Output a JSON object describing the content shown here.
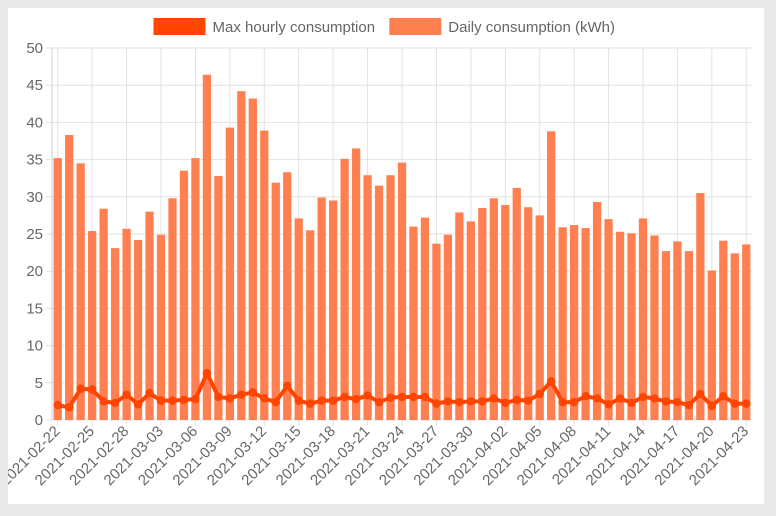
{
  "chart_data": {
    "type": "bar",
    "ylim": [
      0,
      50
    ],
    "yticks": [
      0,
      5,
      10,
      15,
      20,
      25,
      30,
      35,
      40,
      45,
      50
    ],
    "grid": true,
    "legend_position": "top-center",
    "x": [
      "2021-02-22",
      "2021-02-23",
      "2021-02-24",
      "2021-02-25",
      "2021-02-26",
      "2021-02-27",
      "2021-02-28",
      "2021-03-01",
      "2021-03-02",
      "2021-03-03",
      "2021-03-04",
      "2021-03-05",
      "2021-03-06",
      "2021-03-07",
      "2021-03-08",
      "2021-03-09",
      "2021-03-10",
      "2021-03-11",
      "2021-03-12",
      "2021-03-13",
      "2021-03-14",
      "2021-03-15",
      "2021-03-16",
      "2021-03-17",
      "2021-03-18",
      "2021-03-19",
      "2021-03-20",
      "2021-03-21",
      "2021-03-22",
      "2021-03-23",
      "2021-03-24",
      "2021-03-25",
      "2021-03-26",
      "2021-03-27",
      "2021-03-28",
      "2021-03-29",
      "2021-03-30",
      "2021-03-31",
      "2021-04-01",
      "2021-04-02",
      "2021-04-03",
      "2021-04-04",
      "2021-04-05",
      "2021-04-06",
      "2021-04-07",
      "2021-04-08",
      "2021-04-09",
      "2021-04-10",
      "2021-04-11",
      "2021-04-12",
      "2021-04-13",
      "2021-04-14",
      "2021-04-15",
      "2021-04-16",
      "2021-04-17",
      "2021-04-18",
      "2021-04-19",
      "2021-04-20",
      "2021-04-21",
      "2021-04-22",
      "2021-04-23"
    ],
    "xticks": [
      "2021-02-22",
      "2021-02-25",
      "2021-02-28",
      "2021-03-03",
      "2021-03-06",
      "2021-03-09",
      "2021-03-12",
      "2021-03-15",
      "2021-03-18",
      "2021-03-21",
      "2021-03-24",
      "2021-03-27",
      "2021-03-30",
      "2021-04-02",
      "2021-04-05",
      "2021-04-08",
      "2021-04-11",
      "2021-04-14",
      "2021-04-17",
      "2021-04-20",
      "2021-04-23"
    ],
    "series": [
      {
        "name": "Max hourly consumption",
        "type": "line",
        "color": "#ff4500",
        "values": [
          2.0,
          1.7,
          4.2,
          4.1,
          2.5,
          2.3,
          3.4,
          2.1,
          3.6,
          2.6,
          2.6,
          2.7,
          2.8,
          6.3,
          3.1,
          2.9,
          3.4,
          3.7,
          2.9,
          2.4,
          4.6,
          2.6,
          2.2,
          2.6,
          2.6,
          3.1,
          2.8,
          3.3,
          2.4,
          3.0,
          3.1,
          3.1,
          3.1,
          2.2,
          2.5,
          2.4,
          2.5,
          2.5,
          2.9,
          2.3,
          2.7,
          2.6,
          3.5,
          5.2,
          2.4,
          2.4,
          3.2,
          2.9,
          2.1,
          2.9,
          2.3,
          3.1,
          2.9,
          2.5,
          2.4,
          2.0,
          3.5,
          1.9,
          3.2,
          2.2,
          2.2
        ]
      },
      {
        "name": "Daily consumption (kWh)",
        "type": "bar",
        "color": "#ff7f50",
        "values": [
          35.2,
          38.3,
          34.5,
          25.4,
          28.4,
          23.1,
          25.7,
          24.2,
          28.0,
          24.9,
          29.8,
          33.5,
          35.2,
          46.4,
          32.8,
          39.3,
          44.2,
          43.2,
          38.9,
          31.9,
          33.3,
          27.1,
          25.5,
          29.9,
          29.5,
          35.1,
          36.5,
          32.9,
          31.5,
          32.9,
          34.6,
          26.0,
          27.2,
          23.7,
          24.9,
          27.9,
          26.7,
          28.5,
          29.8,
          28.9,
          31.2,
          28.6,
          27.5,
          38.8,
          25.9,
          26.2,
          25.8,
          29.3,
          27.0,
          25.3,
          25.1,
          27.1,
          24.8,
          22.7,
          24.0,
          22.7,
          30.5,
          20.1,
          24.1,
          22.4,
          23.6
        ]
      }
    ]
  }
}
